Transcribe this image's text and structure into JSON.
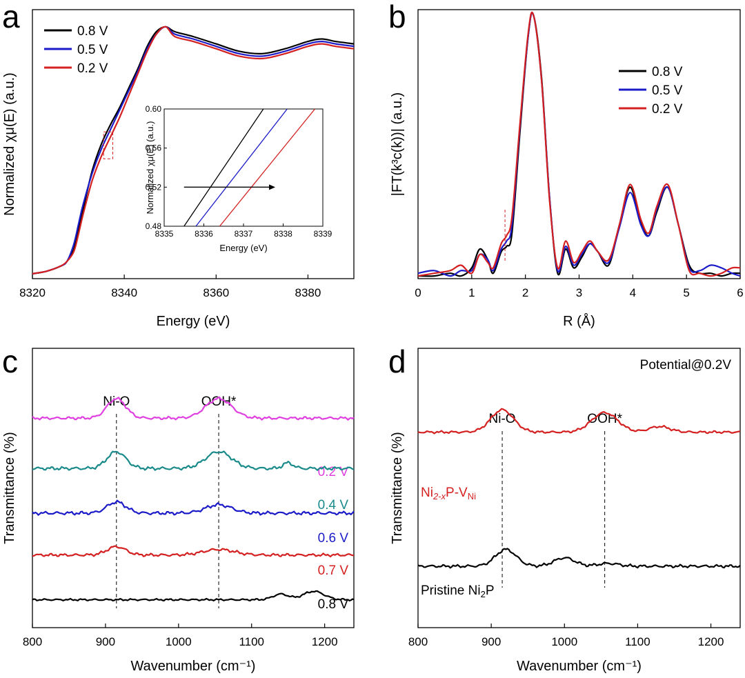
{
  "figure": {
    "panels": [
      "a",
      "b",
      "c",
      "d"
    ]
  },
  "chart_data": [
    {
      "id": "a",
      "type": "line",
      "letter": "a",
      "xlabel": "Energy (eV)",
      "ylabel": "Normalized χμ(E) (a.u.)",
      "xlim": [
        8320,
        8390
      ],
      "xticks": [
        "8320",
        "8340",
        "8360",
        "8380"
      ],
      "xtick_values": [
        8320,
        8340,
        8360,
        8380
      ],
      "ylim": [
        0,
        1.1
      ],
      "legend": [
        "0.8 V",
        "0.5 V",
        "0.2 V"
      ],
      "series": [
        {
          "name": "0.8 V",
          "color": "#000000",
          "x": [
            8320,
            8323,
            8326,
            8327.5,
            8329,
            8330,
            8331,
            8333,
            8335,
            8337,
            8339,
            8341,
            8343,
            8345,
            8347,
            8349,
            8351,
            8355,
            8360,
            8365,
            8370,
            8375,
            8380,
            8383,
            8386,
            8390
          ],
          "y": [
            0.02,
            0.03,
            0.05,
            0.07,
            0.12,
            0.2,
            0.28,
            0.44,
            0.55,
            0.63,
            0.7,
            0.78,
            0.86,
            0.95,
            1.01,
            1.03,
            1.01,
            0.99,
            0.96,
            0.93,
            0.92,
            0.94,
            0.97,
            0.98,
            0.97,
            0.96
          ]
        },
        {
          "name": "0.5 V",
          "color": "#1a1ac8",
          "x": [
            8320,
            8323,
            8326,
            8327.5,
            8329,
            8330,
            8331,
            8333,
            8335,
            8337,
            8339,
            8341,
            8343,
            8345,
            8347,
            8349,
            8351,
            8355,
            8360,
            8365,
            8370,
            8375,
            8380,
            8383,
            8386,
            8390
          ],
          "y": [
            0.02,
            0.03,
            0.05,
            0.07,
            0.14,
            0.22,
            0.3,
            0.43,
            0.53,
            0.61,
            0.69,
            0.77,
            0.85,
            0.94,
            1.0,
            1.03,
            1.0,
            0.98,
            0.95,
            0.92,
            0.91,
            0.93,
            0.96,
            0.97,
            0.96,
            0.95
          ]
        },
        {
          "name": "0.2 V",
          "color": "#d42020",
          "x": [
            8320,
            8323,
            8326,
            8327.5,
            8329,
            8330,
            8331,
            8333,
            8335,
            8337,
            8339,
            8341,
            8343,
            8345,
            8347,
            8349,
            8351,
            8355,
            8360,
            8365,
            8370,
            8375,
            8380,
            8383,
            8386,
            8390
          ],
          "y": [
            0.02,
            0.03,
            0.05,
            0.07,
            0.11,
            0.18,
            0.26,
            0.4,
            0.5,
            0.58,
            0.66,
            0.75,
            0.84,
            0.93,
            1.0,
            1.03,
            0.99,
            0.97,
            0.94,
            0.91,
            0.9,
            0.92,
            0.95,
            0.96,
            0.95,
            0.94
          ]
        }
      ],
      "annotation_box": {
        "x": [
          8335.5,
          8337.5
        ],
        "y": [
          0.49,
          0.6
        ]
      },
      "inset": {
        "xlabel": "Energy (eV)",
        "ylabel": "Normalized χμ(E) (a.u.)",
        "xlim": [
          8335,
          8339
        ],
        "ylim": [
          0.48,
          0.6
        ],
        "xticks": [
          "8335",
          "8336",
          "8337",
          "8338",
          "8339"
        ],
        "xtick_values": [
          8335,
          8336,
          8337,
          8338,
          8339
        ],
        "yticks": [
          "0.48",
          "0.52",
          "0.56",
          "0.60"
        ],
        "ytick_values": [
          0.48,
          0.52,
          0.56,
          0.6
        ],
        "series": [
          {
            "name": "0.8 V",
            "color": "#000000",
            "x": [
              8335.5,
              8337.5
            ],
            "y": [
              0.48,
              0.6
            ]
          },
          {
            "name": "0.5 V",
            "color": "#1a1ac8",
            "x": [
              8335.8,
              8338.1
            ],
            "y": [
              0.48,
              0.6
            ]
          },
          {
            "name": "0.2 V",
            "color": "#d42020",
            "x": [
              8336.4,
              8338.8
            ],
            "y": [
              0.48,
              0.6
            ]
          }
        ],
        "arrow": {
          "x": [
            8335.5,
            8337.8
          ],
          "y": [
            0.52,
            0.52
          ]
        }
      }
    },
    {
      "id": "b",
      "type": "line",
      "letter": "b",
      "xlabel": "R (Å)",
      "ylabel": "|FT(k³c(k))| (a.u.)",
      "xlim": [
        0,
        6
      ],
      "xticks": [
        "0",
        "1",
        "2",
        "3",
        "4",
        "5",
        "6"
      ],
      "xtick_values": [
        0,
        1,
        2,
        3,
        4,
        5,
        6
      ],
      "ylim": [
        0,
        1.0
      ],
      "legend": [
        "0.8 V",
        "0.5 V",
        "0.2 V"
      ],
      "series": [
        {
          "name": "0.8 V",
          "color": "#000000",
          "x": [
            0,
            0.3,
            0.6,
            0.8,
            1.0,
            1.15,
            1.3,
            1.4,
            1.55,
            1.65,
            1.75,
            1.9,
            2.05,
            2.15,
            2.3,
            2.45,
            2.6,
            2.75,
            2.9,
            3.05,
            3.2,
            3.35,
            3.55,
            3.75,
            3.95,
            4.15,
            4.3,
            4.45,
            4.65,
            4.85,
            5.05,
            5.25,
            5.45,
            5.65,
            5.85,
            6.0
          ],
          "y": [
            0.01,
            0.01,
            0.02,
            0.01,
            0.04,
            0.11,
            0.07,
            0.02,
            0.1,
            0.12,
            0.17,
            0.55,
            0.9,
            0.98,
            0.75,
            0.3,
            0.02,
            0.11,
            0.04,
            0.08,
            0.13,
            0.1,
            0.05,
            0.2,
            0.34,
            0.21,
            0.16,
            0.25,
            0.34,
            0.2,
            0.05,
            0.02,
            0.02,
            0.01,
            0.02,
            0.02
          ]
        },
        {
          "name": "0.5 V",
          "color": "#1a1ac8",
          "x": [
            0,
            0.3,
            0.6,
            0.8,
            1.0,
            1.15,
            1.3,
            1.4,
            1.55,
            1.65,
            1.75,
            1.9,
            2.05,
            2.15,
            2.3,
            2.45,
            2.6,
            2.75,
            2.9,
            3.05,
            3.2,
            3.35,
            3.55,
            3.75,
            3.95,
            4.15,
            4.3,
            4.45,
            4.65,
            4.85,
            5.05,
            5.25,
            5.45,
            5.65,
            5.85,
            6.0
          ],
          "y": [
            0.02,
            0.03,
            0.01,
            0.03,
            0.03,
            0.09,
            0.07,
            0.03,
            0.11,
            0.14,
            0.2,
            0.57,
            0.9,
            0.98,
            0.74,
            0.3,
            0.03,
            0.12,
            0.05,
            0.09,
            0.13,
            0.1,
            0.06,
            0.19,
            0.32,
            0.2,
            0.16,
            0.26,
            0.34,
            0.2,
            0.04,
            0.03,
            0.05,
            0.04,
            0.02,
            0.01
          ]
        },
        {
          "name": "0.2 V",
          "color": "#d42020",
          "x": [
            0,
            0.3,
            0.6,
            0.8,
            1.0,
            1.15,
            1.3,
            1.4,
            1.55,
            1.65,
            1.75,
            1.9,
            2.05,
            2.15,
            2.3,
            2.45,
            2.6,
            2.75,
            2.9,
            3.05,
            3.2,
            3.35,
            3.55,
            3.75,
            3.95,
            4.15,
            4.3,
            4.45,
            4.65,
            4.85,
            5.05,
            5.25,
            5.45,
            5.65,
            5.85,
            6.0
          ],
          "y": [
            0.01,
            0.02,
            0.03,
            0.05,
            0.02,
            0.09,
            0.06,
            0.04,
            0.13,
            0.16,
            0.23,
            0.58,
            0.91,
            0.98,
            0.74,
            0.29,
            0.04,
            0.14,
            0.06,
            0.1,
            0.14,
            0.1,
            0.07,
            0.2,
            0.35,
            0.22,
            0.17,
            0.27,
            0.35,
            0.2,
            0.03,
            0.02,
            0.01,
            0.02,
            0.04,
            0.04
          ]
        }
      ],
      "marker_x": 1.62
    },
    {
      "id": "c",
      "type": "line",
      "letter": "c",
      "xlabel": "Wavenumber (cm⁻¹)",
      "ylabel": "Transmittance (%)",
      "xlim": [
        800,
        1240
      ],
      "xticks": [
        "800",
        "900",
        "1000",
        "1100",
        "1200"
      ],
      "xtick_values": [
        800,
        900,
        1000,
        1100,
        1200
      ],
      "ylim": [
        0,
        100
      ],
      "annotations": [
        {
          "label": "Ni-O",
          "x": 915
        },
        {
          "label": "OOH*",
          "x": 1055
        }
      ],
      "series": [
        {
          "name": "0.2 V",
          "label": "0.2 V",
          "color": "#e040e0",
          "base": 75,
          "peaks": [
            [
              915,
              7,
              18
            ],
            [
              1055,
              7,
              25
            ]
          ],
          "noise": 0.6
        },
        {
          "name": "0.4 V",
          "label": "0.4 V",
          "color": "#1a8a8a",
          "base": 57,
          "peaks": [
            [
              915,
              6,
              18
            ],
            [
              1055,
              6,
              25
            ],
            [
              1150,
              2,
              10
            ]
          ],
          "noise": 0.7
        },
        {
          "name": "0.6 V",
          "label": "0.6 V",
          "color": "#1a1ac8",
          "base": 41,
          "peaks": [
            [
              915,
              4,
              18
            ],
            [
              1055,
              3,
              25
            ]
          ],
          "noise": 0.7
        },
        {
          "name": "0.7 V",
          "label": "0.7 V",
          "color": "#d42020",
          "base": 26,
          "peaks": [
            [
              915,
              3,
              18
            ],
            [
              1055,
              2,
              30
            ]
          ],
          "noise": 0.6
        },
        {
          "name": "0.8 V",
          "label": "0.8 V",
          "color": "#000000",
          "base": 10,
          "peaks": [
            [
              1140,
              2,
              15
            ],
            [
              1185,
              3,
              20
            ]
          ],
          "noise": 0.4
        }
      ]
    },
    {
      "id": "d",
      "type": "line",
      "letter": "d",
      "xlabel": "Wavenumber (cm⁻¹)",
      "ylabel": "Transmittance (%)",
      "xlim": [
        800,
        1240
      ],
      "xticks": [
        "800",
        "900",
        "1000",
        "1100",
        "1200"
      ],
      "xtick_values": [
        800,
        900,
        1000,
        1100,
        1200
      ],
      "ylim": [
        0,
        100
      ],
      "note": "Potential@0.2V",
      "annotations": [
        {
          "label": "Ni-O",
          "x": 915
        },
        {
          "label": "OOH*",
          "x": 1055
        }
      ],
      "series": [
        {
          "name": "Ni2-xP-VNi",
          "label_parts": [
            "Ni",
            "2-x",
            "P-V",
            "Ni"
          ],
          "color": "#d42020",
          "base": 70,
          "peaks": [
            [
              915,
              8,
              22
            ],
            [
              1055,
              7,
              25
            ],
            [
              1130,
              2,
              20
            ]
          ],
          "noise": 0.5
        },
        {
          "name": "Pristine Ni2P",
          "label_parts": [
            "Pristine Ni",
            "2",
            "P"
          ],
          "color": "#000000",
          "base": 22,
          "peaks": [
            [
              920,
              6,
              20
            ],
            [
              1000,
              3,
              20
            ],
            [
              1060,
              1,
              20
            ]
          ],
          "noise": 0.6
        }
      ]
    }
  ]
}
